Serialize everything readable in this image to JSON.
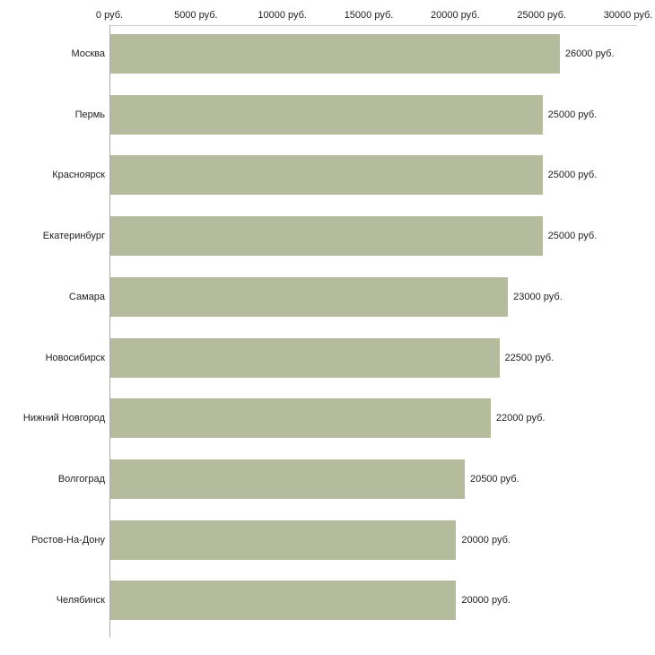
{
  "chart_data": {
    "type": "bar",
    "orientation": "horizontal",
    "title": "",
    "categories": [
      "Москва",
      "Пермь",
      "Красноярск",
      "Екатеринбург",
      "Самара",
      "Новосибирск",
      "Нижний Новгород",
      "Волгоград",
      "Ростов-На-Дону",
      "Челябинск"
    ],
    "values": [
      26000,
      25000,
      25000,
      25000,
      23000,
      22500,
      22000,
      20500,
      20000,
      20000
    ],
    "value_labels": [
      "26000 руб.",
      "25000 руб.",
      "25000 руб.",
      "25000 руб.",
      "23000 руб.",
      "22500 руб.",
      "22000 руб.",
      "20500 руб.",
      "20000 руб.",
      "20000 руб."
    ],
    "x_ticks": [
      0,
      5000,
      10000,
      15000,
      20000,
      25000,
      30000
    ],
    "x_tick_labels": [
      "0 руб.",
      "5000 руб.",
      "10000 руб.",
      "15000 руб.",
      "20000 руб.",
      "25000 руб.",
      "30000 руб."
    ],
    "xlim": [
      0,
      30000
    ],
    "xlabel": "",
    "ylabel": "",
    "grid": false,
    "legend": false,
    "bar_color": "#b5bb9d",
    "background_color": "#ffffff",
    "text_color": "#222222"
  }
}
